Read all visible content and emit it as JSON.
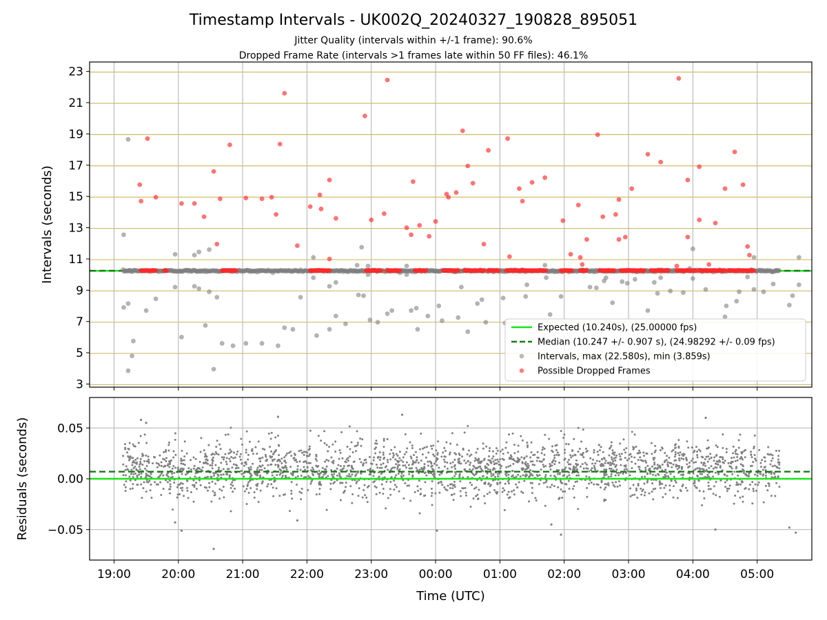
{
  "chart_data": [
    {
      "type": "scatter",
      "title": "Timestamp Intervals - UK002Q_20240327_190828_895051",
      "subtitle_lines": [
        "Jitter Quality (intervals within +/-1 frame): 90.6%",
        "Dropped Frame Rate (intervals >1 frames late within 50 FF files): 46.1%"
      ],
      "xlabel": "",
      "ylabel": "Intervals (seconds)",
      "x_unit": "hours since 19:00 UTC on the shown timeline",
      "xlim": [
        -0.38,
        10.85
      ],
      "ylim": [
        2.8,
        23.6
      ],
      "yticks": [
        3,
        5,
        7,
        9,
        11,
        13,
        15,
        17,
        19,
        21,
        23
      ],
      "yticklabels": [
        "3",
        "5",
        "7",
        "9",
        "11",
        "13",
        "15",
        "17",
        "19",
        "21",
        "23"
      ],
      "x_span_hours": [
        0.14,
        10.35
      ],
      "horizontal_grid_color": "#d4b96a",
      "grid": true,
      "legend_position": "lower right",
      "legend": [
        "Expected (10.240s), (25.00000 fps)",
        "Median (10.247 +/- 0.907 s), (24.98292 +/- 0.09 fps)",
        "Intervals, max (22.580s), min (3.859s)",
        "Possible Dropped Frames"
      ],
      "lines": {
        "expected": 10.24,
        "median": 10.247
      },
      "colors": {
        "expected": "#14e614",
        "median": "#137a13",
        "intervals": "#808080",
        "dropped": "#ff2a2a"
      },
      "series": [
        {
          "name": "Intervals, max (22.580s), min (3.859s)",
          "points": [
            [
              0.15,
              12.55
            ],
            [
              0.15,
              7.9
            ],
            [
              0.22,
              8.15
            ],
            [
              0.22,
              18.65
            ],
            [
              0.22,
              3.85
            ],
            [
              0.28,
              4.8
            ],
            [
              0.3,
              5.75
            ],
            [
              0.5,
              7.7
            ],
            [
              0.65,
              8.45
            ],
            [
              0.95,
              11.3
            ],
            [
              0.95,
              9.2
            ],
            [
              1.05,
              6.0
            ],
            [
              1.25,
              11.25
            ],
            [
              1.25,
              9.25
            ],
            [
              1.32,
              11.45
            ],
            [
              1.32,
              9.1
            ],
            [
              1.42,
              6.75
            ],
            [
              1.48,
              8.9
            ],
            [
              1.48,
              11.6
            ],
            [
              1.55,
              3.95
            ],
            [
              1.6,
              8.55
            ],
            [
              1.68,
              5.6
            ],
            [
              1.85,
              5.45
            ],
            [
              2.05,
              5.6
            ],
            [
              2.3,
              5.6
            ],
            [
              2.55,
              5.45
            ],
            [
              2.65,
              6.6
            ],
            [
              2.78,
              6.5
            ],
            [
              2.9,
              8.55
            ],
            [
              3.1,
              11.1
            ],
            [
              3.1,
              9.8
            ],
            [
              3.15,
              6.1
            ],
            [
              3.35,
              9.25
            ],
            [
              3.35,
              6.5
            ],
            [
              3.45,
              9.5
            ],
            [
              3.45,
              7.35
            ],
            [
              3.6,
              6.85
            ],
            [
              3.78,
              10.6
            ],
            [
              3.8,
              8.7
            ],
            [
              3.85,
              11.75
            ],
            [
              3.88,
              8.65
            ],
            [
              3.95,
              10.55
            ],
            [
              3.95,
              10.0
            ],
            [
              3.98,
              7.1
            ],
            [
              4.1,
              6.95
            ],
            [
              4.25,
              10.3
            ],
            [
              4.25,
              7.5
            ],
            [
              4.32,
              7.7
            ],
            [
              4.55,
              10.55
            ],
            [
              4.55,
              10.0
            ],
            [
              4.62,
              7.7
            ],
            [
              4.7,
              7.85
            ],
            [
              4.72,
              6.5
            ],
            [
              4.88,
              7.35
            ],
            [
              5.05,
              8.0
            ],
            [
              5.1,
              7.05
            ],
            [
              5.35,
              7.25
            ],
            [
              5.4,
              9.2
            ],
            [
              5.5,
              6.35
            ],
            [
              5.65,
              8.15
            ],
            [
              5.72,
              8.4
            ],
            [
              5.78,
              6.95
            ],
            [
              6.05,
              8.5
            ],
            [
              6.08,
              6.9
            ],
            [
              6.4,
              8.6
            ],
            [
              6.42,
              9.35
            ],
            [
              6.7,
              10.6
            ],
            [
              6.72,
              9.8
            ],
            [
              6.78,
              7.45
            ],
            [
              6.95,
              8.6
            ],
            [
              7.3,
              10.2
            ],
            [
              7.4,
              9.2
            ],
            [
              7.5,
              9.15
            ],
            [
              7.62,
              9.6
            ],
            [
              7.65,
              9.8
            ],
            [
              7.75,
              8.2
            ],
            [
              7.9,
              9.55
            ],
            [
              7.98,
              9.45
            ],
            [
              8.1,
              9.7
            ],
            [
              8.3,
              7.7
            ],
            [
              8.4,
              9.5
            ],
            [
              8.45,
              8.8
            ],
            [
              8.5,
              9.8
            ],
            [
              8.65,
              8.95
            ],
            [
              8.85,
              8.85
            ],
            [
              8.95,
              10.4
            ],
            [
              9.0,
              11.65
            ],
            [
              9.0,
              9.75
            ],
            [
              9.2,
              9.05
            ],
            [
              9.45,
              10.2
            ],
            [
              9.5,
              7.3
            ],
            [
              9.52,
              8.0
            ],
            [
              9.68,
              8.3
            ],
            [
              9.72,
              8.9
            ],
            [
              9.85,
              9.85
            ],
            [
              9.95,
              11.1
            ],
            [
              9.95,
              9.05
            ],
            [
              10.1,
              8.9
            ],
            [
              10.25,
              9.4
            ],
            [
              10.5,
              8.05
            ],
            [
              10.55,
              8.65
            ],
            [
              10.65,
              11.1
            ],
            [
              10.65,
              9.35
            ]
          ]
        },
        {
          "name": "Possible Dropped Frames",
          "points": [
            [
              0.42,
              14.7
            ],
            [
              0.4,
              15.75
            ],
            [
              0.52,
              18.7
            ],
            [
              0.65,
              14.95
            ],
            [
              1.05,
              14.55
            ],
            [
              1.25,
              14.55
            ],
            [
              1.4,
              13.7
            ],
            [
              1.55,
              16.6
            ],
            [
              1.6,
              11.95
            ],
            [
              1.65,
              14.85
            ],
            [
              1.8,
              18.3
            ],
            [
              2.05,
              14.9
            ],
            [
              2.3,
              14.85
            ],
            [
              2.45,
              14.95
            ],
            [
              2.52,
              13.85
            ],
            [
              2.58,
              18.35
            ],
            [
              2.65,
              21.6
            ],
            [
              2.85,
              11.85
            ],
            [
              3.05,
              14.35
            ],
            [
              3.2,
              15.1
            ],
            [
              3.22,
              14.2
            ],
            [
              3.35,
              16.05
            ],
            [
              3.35,
              11.0
            ],
            [
              3.45,
              13.6
            ],
            [
              3.9,
              20.15
            ],
            [
              4.0,
              13.5
            ],
            [
              4.2,
              13.9
            ],
            [
              4.25,
              22.45
            ],
            [
              4.55,
              13.0
            ],
            [
              4.62,
              12.55
            ],
            [
              4.65,
              15.95
            ],
            [
              4.75,
              13.15
            ],
            [
              4.9,
              12.45
            ],
            [
              5.0,
              13.4
            ],
            [
              5.17,
              15.15
            ],
            [
              5.2,
              14.95
            ],
            [
              5.32,
              15.25
            ],
            [
              5.42,
              19.2
            ],
            [
              5.5,
              16.95
            ],
            [
              5.58,
              15.85
            ],
            [
              5.75,
              11.95
            ],
            [
              5.82,
              17.95
            ],
            [
              6.12,
              18.7
            ],
            [
              6.15,
              11.15
            ],
            [
              6.3,
              15.5
            ],
            [
              6.35,
              14.7
            ],
            [
              6.5,
              15.9
            ],
            [
              6.7,
              16.2
            ],
            [
              6.98,
              13.45
            ],
            [
              7.1,
              11.3
            ],
            [
              7.22,
              14.45
            ],
            [
              7.25,
              11.1
            ],
            [
              7.28,
              10.65
            ],
            [
              7.35,
              12.25
            ],
            [
              7.52,
              18.95
            ],
            [
              7.6,
              13.7
            ],
            [
              7.8,
              13.85
            ],
            [
              7.85,
              14.8
            ],
            [
              7.85,
              12.25
            ],
            [
              7.95,
              12.4
            ],
            [
              8.05,
              15.5
            ],
            [
              8.3,
              17.7
            ],
            [
              8.5,
              17.2
            ],
            [
              8.78,
              22.55
            ],
            [
              8.75,
              10.55
            ],
            [
              8.92,
              16.05
            ],
            [
              8.92,
              12.4
            ],
            [
              9.1,
              16.9
            ],
            [
              9.1,
              13.5
            ],
            [
              9.25,
              10.65
            ],
            [
              9.35,
              13.3
            ],
            [
              9.5,
              15.5
            ],
            [
              9.65,
              17.85
            ],
            [
              9.78,
              15.75
            ],
            [
              9.85,
              11.8
            ],
            [
              9.88,
              11.25
            ]
          ],
          "baseline_runs": [
            [
              0.42,
              0.65
            ],
            [
              0.78,
              0.82
            ],
            [
              1.68,
              1.9
            ],
            [
              3.05,
              3.35
            ],
            [
              3.92,
              4.15
            ],
            [
              4.25,
              4.45
            ],
            [
              4.68,
              4.85
            ],
            [
              5.12,
              5.35
            ],
            [
              5.45,
              5.75
            ],
            [
              5.82,
              5.98
            ],
            [
              6.1,
              6.5
            ],
            [
              6.52,
              6.72
            ],
            [
              6.95,
              7.12
            ],
            [
              7.25,
              7.35
            ],
            [
              7.55,
              7.78
            ],
            [
              7.88,
              8.25
            ],
            [
              8.35,
              8.62
            ],
            [
              8.75,
              9.05
            ],
            [
              9.1,
              9.5
            ],
            [
              9.55,
              9.95
            ]
          ]
        }
      ]
    },
    {
      "type": "scatter",
      "ylabel": "Residuals (seconds)",
      "xlabel": "Time (UTC)",
      "xlim": [
        -0.38,
        10.85
      ],
      "ylim": [
        -0.08,
        0.08
      ],
      "yticks": [
        -0.05,
        0.0,
        0.05
      ],
      "yticklabels": [
        "−0.05",
        "0.00",
        "0.05"
      ],
      "xticks": [
        0,
        1,
        2,
        3,
        4,
        5,
        6,
        7,
        8,
        9,
        10
      ],
      "xticklabels": [
        "19:00",
        "20:00",
        "21:00",
        "22:00",
        "23:00",
        "00:00",
        "01:00",
        "02:00",
        "03:00",
        "04:00",
        "05:00"
      ],
      "grid": true,
      "lines": {
        "expected": 0.0,
        "median": 0.007
      },
      "colors": {
        "points": "#808080",
        "expected": "#14e614",
        "median": "#137a13"
      },
      "residual_distribution": {
        "x_span_hours": [
          0.14,
          10.35
        ],
        "count": 2300,
        "center": 0.01,
        "spread": 0.014
      },
      "series": [
        {
          "name": "",
          "outliers": [
            [
              0.42,
              0.058
            ],
            [
              0.5,
              0.055
            ],
            [
              1.05,
              -0.051
            ],
            [
              1.55,
              -0.069
            ],
            [
              2.55,
              0.061
            ],
            [
              4.48,
              0.063
            ],
            [
              5.02,
              -0.051
            ],
            [
              6.95,
              -0.055
            ],
            [
              9.2,
              0.06
            ],
            [
              9.35,
              -0.05
            ],
            [
              10.5,
              -0.048
            ],
            [
              10.6,
              -0.053
            ],
            [
              0.95,
              -0.043
            ],
            [
              2.85,
              -0.041
            ],
            [
              6.8,
              -0.045
            ]
          ]
        }
      ]
    }
  ]
}
